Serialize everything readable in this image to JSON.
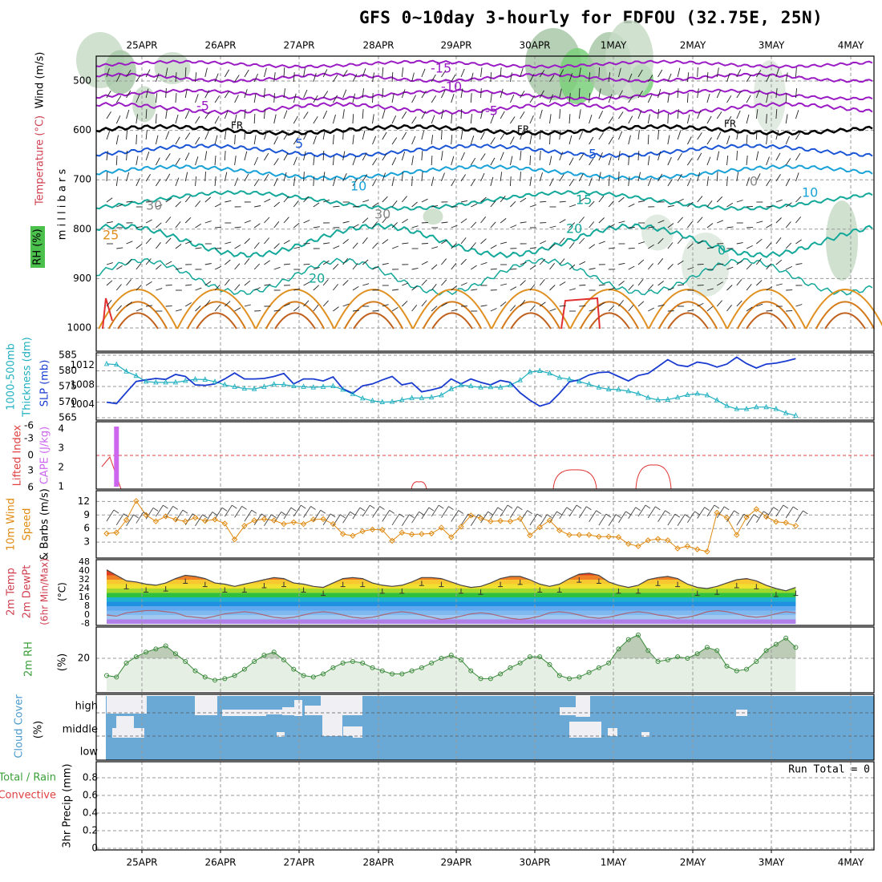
{
  "title": "GFS 0~10day 3-hourly for EDFOU (32.75E, 25N)",
  "colors": {
    "purple": "#9a1bc4",
    "blue": "#1a55d6",
    "teal": "#13a89a",
    "orange": "#e09020",
    "red": "#e03030",
    "lightblue": "#18a2d8",
    "rh_green": "#3cb43c",
    "cloud": "#6aa9d6",
    "slp": "#1a3bd0",
    "thick": "#20b0c0",
    "cape": "#cc66ee",
    "wind": "#e08a10"
  },
  "chart_data": [
    {
      "id": "upper-air",
      "type": "contour",
      "title": "",
      "left_labels": [
        "Wind (m/s)",
        "Temperature (°C)",
        "RH (%)"
      ],
      "ylabel": "m i l l i b a r s",
      "y_ticks": [
        500,
        600,
        700,
        800,
        900,
        1000
      ],
      "x_ticks_top": [
        "25APR",
        "26APR",
        "27APR",
        "28APR",
        "29APR",
        "30APR",
        "1MAY",
        "2MAY",
        "3MAY",
        "4MAY"
      ],
      "isotherm_labels": [
        "-15",
        "-10",
        "-5",
        "-5",
        "FR",
        "FR",
        "FR",
        "5",
        "5",
        "10",
        "10",
        "15",
        "20",
        "20",
        "25",
        "0",
        "30",
        "30",
        "0"
      ]
    },
    {
      "id": "slp-thickness",
      "type": "line",
      "left_labels": [
        "1000-500mb",
        "Thickness (dm)",
        "SLP (mb)"
      ],
      "y_ticks_left": [
        565,
        570,
        575,
        580,
        585
      ],
      "y_ticks_right": [
        1004,
        1008,
        1012
      ],
      "series": [
        {
          "name": "SLP (mb)",
          "values": [
            1004.5,
            1004.2,
            1006.5,
            1008.7,
            1009.0,
            1009.3,
            1009.1,
            1010.1,
            1009.7,
            1008.0,
            1007.9,
            1008.2,
            1009.2,
            1010.4,
            1009.2,
            1009.2,
            1009.3,
            1009.7,
            1010.3,
            1008.2,
            1009.2,
            1009.2,
            1008.8,
            1009.6,
            1007.2,
            1006.3,
            1007.8,
            1008.2,
            1009.0,
            1009.7,
            1008.0,
            1008.4,
            1006.6,
            1007.0,
            1007.5,
            1009.2,
            1008.2,
            1009.2,
            1008.5,
            1008.0,
            1008.9,
            1008.5,
            1006.4,
            1004.9,
            1003.7,
            1004.3,
            1006.3,
            1008.6,
            1009.0,
            1010.0,
            1010.5,
            1010.6,
            1009.7,
            1008.8,
            1009.9,
            1010.3,
            1011.7,
            1013.1,
            1012.0,
            1011.7,
            1012.6,
            1012.3,
            1011.6,
            1012.2,
            1013.6,
            1012.3,
            1011.4,
            1012.2,
            1012.4,
            1012.8,
            1013.3
          ]
        },
        {
          "name": "Thickness (dm)",
          "values": [
            582.2,
            582.0,
            579.8,
            578.4,
            576.6,
            576.3,
            576.3,
            576.3,
            576.8,
            577.3,
            577.2,
            576.5,
            575.5,
            574.9,
            574.3,
            574.2,
            574.9,
            575.7,
            575.6,
            575.1,
            574.9,
            574.7,
            574.9,
            575.1,
            574.0,
            572.6,
            571.2,
            570.4,
            570.0,
            570.1,
            570.7,
            571.3,
            571.3,
            571.5,
            572.2,
            574.2,
            575.4,
            575.1,
            574.7,
            574.8,
            574.7,
            575.4,
            577.0,
            579.6,
            580.0,
            579.2,
            577.8,
            577.3,
            576.6,
            575.7,
            574.7,
            574.1,
            574.0,
            573.5,
            572.7,
            571.4,
            570.7,
            570.8,
            571.5,
            572.3,
            572.7,
            572.2,
            570.6,
            568.8,
            567.8,
            567.8,
            568.4,
            568.4,
            567.8,
            566.5,
            565.7
          ]
        }
      ]
    },
    {
      "id": "cape-li",
      "type": "line+bar",
      "left_labels": [
        "CAPE (J/kg)",
        "Lifted Index"
      ],
      "y_ticks_left": [
        "6",
        "3",
        "0",
        "-3",
        "-6"
      ],
      "y_ticks_right": [
        1,
        2,
        3,
        4
      ],
      "series": [
        {
          "name": "Lifted Index",
          "values": [
            null,
            null,
            null,
            null,
            null,
            null,
            null,
            null,
            null,
            null,
            null,
            null,
            null,
            null,
            null,
            null,
            null,
            null,
            null,
            null,
            null,
            null,
            null,
            null,
            null,
            null,
            null,
            null,
            null,
            null,
            null,
            null,
            null,
            null,
            null,
            null,
            null,
            null,
            null,
            null,
            null,
            null,
            null,
            null,
            null,
            null,
            null,
            null,
            null,
            null,
            null,
            null,
            null,
            null,
            null,
            null,
            null,
            null,
            null,
            null,
            null,
            null,
            null,
            null,
            null,
            null,
            null,
            null,
            null,
            null,
            null
          ]
        },
        {
          "name": "Lifted Index curve",
          "values": []
        },
        {
          "name": "CAPE (J/kg)",
          "values": [
            0,
            4.0,
            0,
            0,
            0,
            0,
            0,
            0,
            0,
            0,
            0,
            0,
            0,
            0,
            0,
            0,
            0,
            0,
            0,
            0,
            0,
            0,
            0,
            0,
            0,
            0,
            0,
            0,
            0,
            0,
            0,
            0,
            0,
            0,
            0,
            0,
            0,
            0,
            0,
            0,
            0,
            0,
            0,
            0,
            0,
            0,
            0,
            0,
            0,
            0,
            0,
            0,
            0,
            0,
            0,
            0,
            0,
            0,
            0,
            0,
            0,
            0,
            0,
            0,
            0,
            0,
            0,
            0,
            0,
            0,
            0
          ]
        }
      ]
    },
    {
      "id": "wind10m",
      "type": "line",
      "left_labels": [
        "10m Wind",
        "Speed",
        "& Barbs",
        "(m/s)"
      ],
      "y_ticks": [
        3,
        6,
        9,
        12
      ],
      "series": [
        {
          "name": "10m Wind Speed (m/s)",
          "values": [
            4.9,
            5.1,
            7.9,
            12.1,
            9.0,
            7.6,
            8.7,
            8.0,
            7.6,
            8.4,
            7.7,
            8.0,
            7.1,
            3.6,
            6.6,
            7.8,
            8.1,
            7.8,
            7.0,
            7.4,
            7.0,
            8.0,
            8.1,
            7.0,
            4.8,
            4.4,
            5.4,
            5.8,
            5.7,
            3.3,
            5.1,
            4.7,
            4.8,
            4.9,
            6.2,
            4.1,
            6.4,
            8.9,
            8.3,
            7.6,
            7.7,
            7.6,
            8.2,
            4.5,
            6.3,
            7.8,
            5.6,
            4.6,
            4.6,
            4.6,
            4.2,
            4.2,
            4.1,
            2.6,
            2.1,
            3.4,
            3.7,
            3.4,
            1.6,
            2.1,
            1.4,
            0.9,
            9.5,
            8.4,
            4.6,
            8.5,
            10.3,
            8.6,
            7.5,
            7.3,
            6.6
          ]
        }
      ]
    },
    {
      "id": "temp2m",
      "type": "area",
      "left_labels": [
        "2m Temp",
        "2m DewPt",
        "(6hr Min/Max)",
        "(°C)"
      ],
      "y_ticks": [
        -8,
        0,
        8,
        16,
        24,
        32,
        40,
        48
      ],
      "series": [
        {
          "name": "2m Temp",
          "values": [
            41,
            36,
            31,
            30,
            28,
            27,
            29,
            33,
            36,
            35,
            33,
            29,
            28,
            26,
            28,
            30,
            32,
            34,
            33,
            29,
            28,
            26,
            25,
            29,
            33,
            34,
            33,
            29,
            27,
            26,
            27,
            30,
            34,
            34,
            33,
            30,
            27,
            25,
            26,
            29,
            33,
            35,
            35,
            32,
            28,
            26,
            28,
            33,
            37,
            38,
            36,
            30,
            27,
            25,
            27,
            32,
            34,
            35,
            33,
            28,
            25,
            24,
            26,
            29,
            32,
            33,
            31,
            27,
            24,
            22,
            25
          ]
        },
        {
          "name": "2m DewPt",
          "values": [
            0,
            -1,
            2,
            3,
            4,
            4,
            3,
            2,
            -1,
            -2,
            -3,
            -1,
            1,
            2,
            3,
            2,
            0,
            -2,
            -3,
            -2,
            0,
            2,
            3,
            2,
            0,
            -2,
            -3,
            -2,
            0,
            2,
            3,
            2,
            0,
            -2,
            -4,
            -3,
            -1,
            1,
            2,
            1,
            -1,
            -3,
            -4,
            -3,
            -1,
            2,
            3,
            2,
            0,
            -2,
            -3,
            -2,
            0,
            2,
            3,
            2,
            0,
            -1,
            -3,
            -2,
            0,
            3,
            4,
            3,
            1,
            -1,
            -2,
            -1,
            1,
            3,
            2
          ]
        }
      ]
    },
    {
      "id": "rh2m",
      "type": "area",
      "left_labels": [
        "2m RH",
        "(%)"
      ],
      "y_ticks": [
        20
      ],
      "series": [
        {
          "name": "2m RH (%)",
          "values": [
            9,
            8,
            17,
            21,
            24,
            26,
            28,
            23,
            18,
            12,
            8,
            6,
            7,
            9,
            13,
            18,
            22,
            24,
            19,
            13,
            9,
            8,
            10,
            14,
            17,
            18,
            17,
            14,
            12,
            10,
            10,
            12,
            14,
            17,
            20,
            22,
            19,
            12,
            7,
            7,
            10,
            14,
            17,
            21,
            21,
            16,
            9,
            7,
            8,
            11,
            14,
            17,
            26,
            32,
            35,
            25,
            18,
            19,
            21,
            20,
            23,
            27,
            25,
            15,
            12,
            13,
            18,
            25,
            29,
            33,
            27
          ]
        }
      ]
    },
    {
      "id": "cloud",
      "type": "heatmap",
      "left_labels": [
        "Cloud Cover",
        "(%)"
      ],
      "y_categories": [
        "high",
        "middle",
        "low"
      ]
    },
    {
      "id": "precip",
      "type": "bar",
      "left_labels": [
        "Total / Rain",
        "Convective",
        "3hr Precip (mm)"
      ],
      "y_ticks": [
        0,
        0.2,
        0.4,
        0.6,
        0.8
      ],
      "annotation": "Run Total = 0",
      "x_ticks_bottom": [
        "25APR",
        "26APR",
        "27APR",
        "28APR",
        "29APR",
        "30APR",
        "1MAY",
        "2MAY",
        "3MAY",
        "4MAY"
      ],
      "values": []
    }
  ]
}
